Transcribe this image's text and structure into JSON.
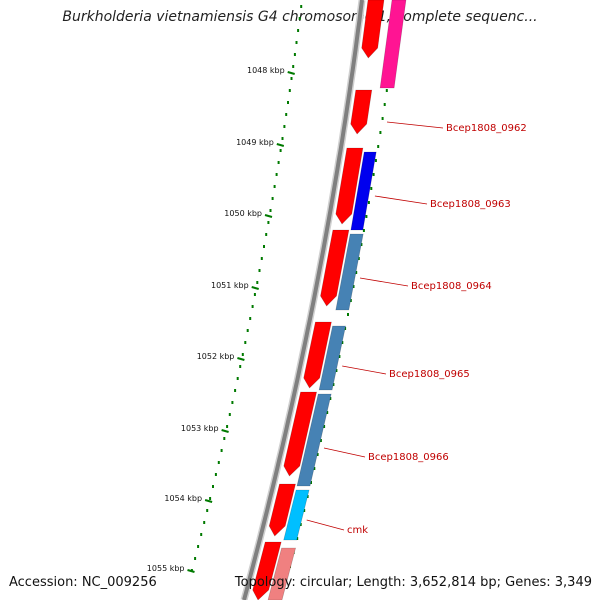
{
  "title": "Burkholderia vietnamiensis G4 chromosome 1, complete sequenc...",
  "footer": {
    "accession": "Accession: NC_009256",
    "summary": "Topology: circular; Length: 3,652,814 bp; Genes: 3,349"
  },
  "ticks": [
    {
      "label": "1048 kbp"
    },
    {
      "label": "1049 kbp"
    },
    {
      "label": "1050 kbp"
    },
    {
      "label": "1051 kbp"
    },
    {
      "label": "1052 kbp"
    },
    {
      "label": "1053 kbp"
    },
    {
      "label": "1054 kbp"
    },
    {
      "label": "1055 kbp"
    }
  ],
  "genes": [
    {
      "label": "Bcep1808_0962",
      "color": "#ff0000"
    },
    {
      "label": "Bcep1808_0963",
      "color": "#0000ee"
    },
    {
      "label": "Bcep1808_0964",
      "color": "#4682b4"
    },
    {
      "label": "Bcep1808_0965",
      "color": "#4682b4"
    },
    {
      "label": "Bcep1808_0966",
      "color": "#4682b4"
    },
    {
      "label": "cmk",
      "color": "#00bfff"
    }
  ],
  "colors": {
    "backbone": "#808080",
    "cds": "#ff0000",
    "feature_pink": "#ff1493",
    "feature_light": "#f08080",
    "tick": "#007a00",
    "label": "#c00000"
  }
}
